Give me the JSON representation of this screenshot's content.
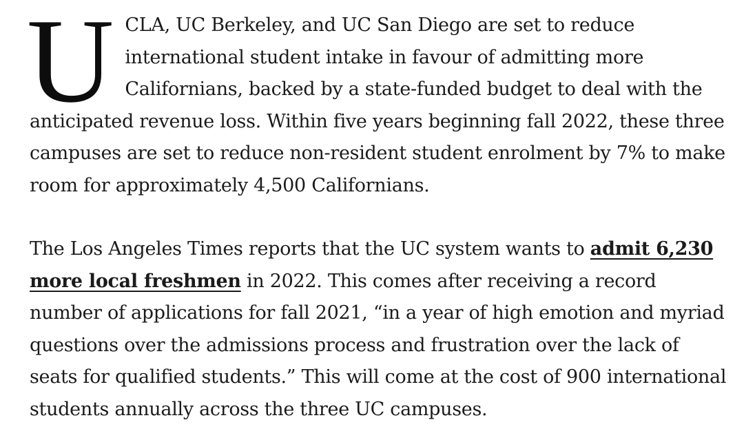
{
  "article": {
    "paragraph1": {
      "drop_cap": "U",
      "text": "CLA, UC Berkeley, and UC San Diego are set to reduce international student intake in favour of admitting more Californians, backed by a state-funded budget to deal with the anticipated revenue loss. Within five years beginning fall 2022, these three campuses are set to reduce non-resident student enrolment by 7% to make room for approximately 4,500 Californians."
    },
    "paragraph2": {
      "text_before_link": "The Los Angeles Times reports that the UC system wants to ",
      "link_text": "admit 6,230 more local freshmen",
      "text_after_link": " in 2022. This comes after receiving a record number of applications for fall 2021, “in a year of high emotion and myriad questions over the admissions process and frustration over the lack of seats for qualified students.” This will come at the cost of 900 international students annually across the three UC campuses."
    }
  }
}
